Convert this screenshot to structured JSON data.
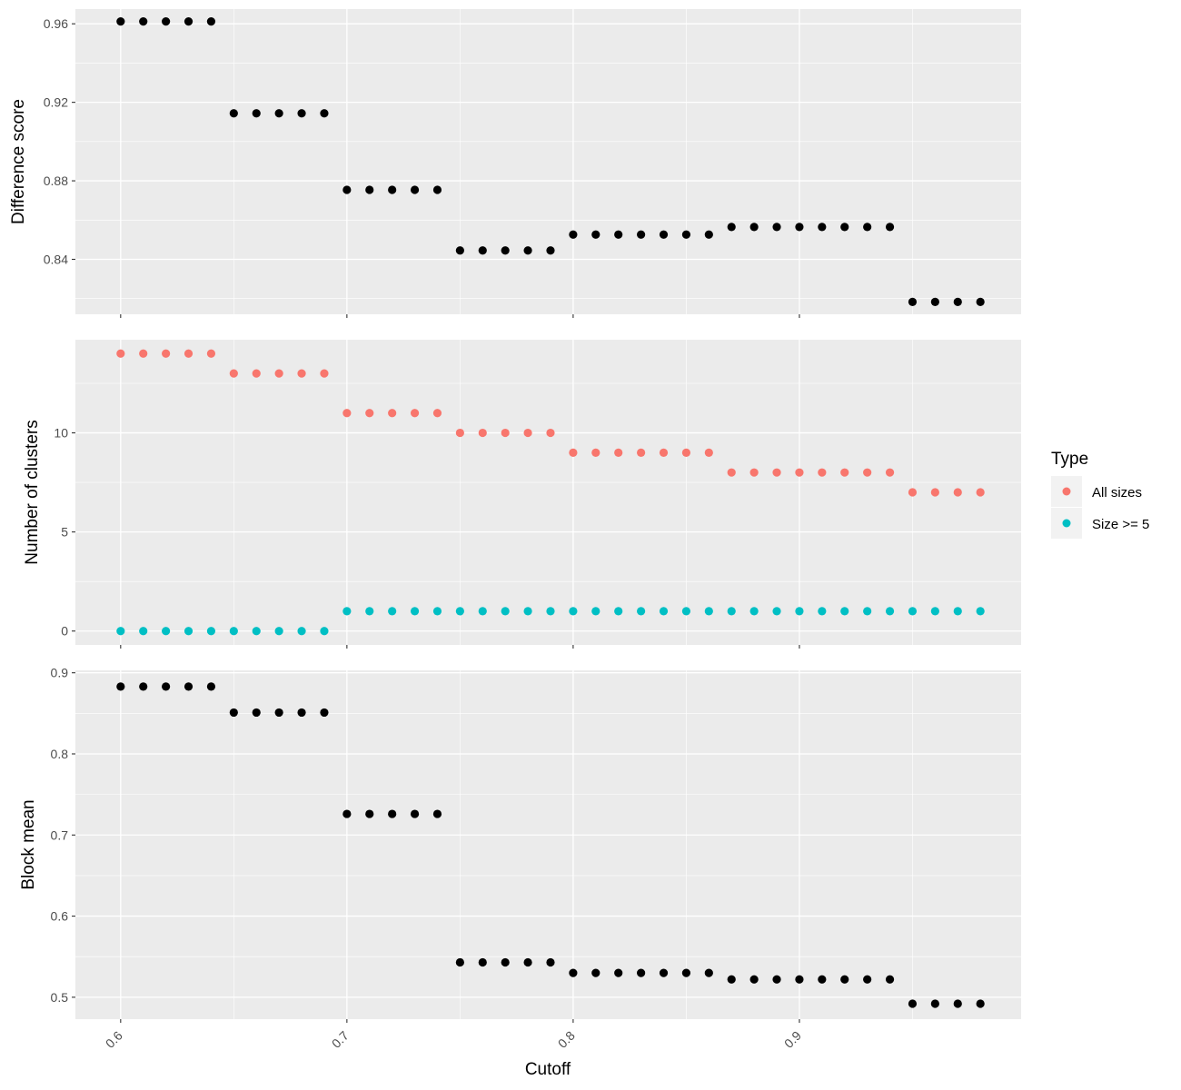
{
  "chart_data": {
    "type": "scatter",
    "layout": "vertical-facets",
    "x": [
      0.6,
      0.61,
      0.62,
      0.63,
      0.64,
      0.65,
      0.66,
      0.67,
      0.68,
      0.69,
      0.7,
      0.71,
      0.72,
      0.73,
      0.74,
      0.75,
      0.76,
      0.77,
      0.78,
      0.79,
      0.8,
      0.81,
      0.82,
      0.83,
      0.84,
      0.85,
      0.86,
      0.87,
      0.88,
      0.89,
      0.9,
      0.91,
      0.92,
      0.93,
      0.94,
      0.95,
      0.96,
      0.97,
      0.98
    ],
    "xlabel": "Cutoff",
    "xlim": [
      0.58,
      0.998
    ],
    "x_ticks": [
      0.6,
      0.7,
      0.8,
      0.9
    ],
    "x_tick_labels": [
      "0.6",
      "0.7",
      "0.8",
      "0.9"
    ],
    "grid": true,
    "panels": [
      {
        "ylabel": "Difference score",
        "ylim": [
          0.812,
          0.9675
        ],
        "y_ticks": [
          0.84,
          0.88,
          0.92,
          0.96
        ],
        "y_tick_labels": [
          "0.84",
          "0.88",
          "0.92",
          "0.96"
        ],
        "y_minor_ticks": [
          0.82,
          0.86,
          0.9,
          0.94
        ],
        "series": [
          {
            "color": "#000000",
            "values": [
              0.9612,
              0.9612,
              0.9612,
              0.9612,
              0.9612,
              0.9144,
              0.9144,
              0.9144,
              0.9144,
              0.9144,
              0.8754,
              0.8754,
              0.8754,
              0.8754,
              0.8754,
              0.8445,
              0.8445,
              0.8445,
              0.8445,
              0.8445,
              0.8526,
              0.8526,
              0.8526,
              0.8526,
              0.8526,
              0.8526,
              0.8526,
              0.8565,
              0.8565,
              0.8565,
              0.8565,
              0.8565,
              0.8565,
              0.8565,
              0.8565,
              0.8183,
              0.8183,
              0.8183,
              0.8183
            ]
          }
        ]
      },
      {
        "ylabel": "Number of clusters",
        "ylim": [
          -0.7,
          14.7
        ],
        "y_ticks": [
          0,
          5,
          10
        ],
        "y_tick_labels": [
          "0",
          "5",
          "10"
        ],
        "y_minor_ticks": [
          2.5,
          7.5,
          12.5
        ],
        "series": [
          {
            "name": "All sizes",
            "color": "#F8766D",
            "values": [
              14,
              14,
              14,
              14,
              14,
              13,
              13,
              13,
              13,
              13,
              11,
              11,
              11,
              11,
              11,
              10,
              10,
              10,
              10,
              10,
              9,
              9,
              9,
              9,
              9,
              9,
              9,
              8,
              8,
              8,
              8,
              8,
              8,
              8,
              8,
              7,
              7,
              7,
              7
            ]
          },
          {
            "name": "Size >= 5",
            "color": "#00BFC4",
            "values": [
              0,
              0,
              0,
              0,
              0,
              0,
              0,
              0,
              0,
              0,
              1,
              1,
              1,
              1,
              1,
              1,
              1,
              1,
              1,
              1,
              1,
              1,
              1,
              1,
              1,
              1,
              1,
              1,
              1,
              1,
              1,
              1,
              1,
              1,
              1,
              1,
              1,
              1,
              1
            ]
          }
        ]
      },
      {
        "ylabel": "Block mean",
        "ylim": [
          0.473,
          0.903
        ],
        "y_ticks": [
          0.5,
          0.6,
          0.7,
          0.8,
          0.9
        ],
        "y_tick_labels": [
          "0.5",
          "0.6",
          "0.7",
          "0.8",
          "0.9"
        ],
        "y_minor_ticks": [
          0.55,
          0.65,
          0.75,
          0.85
        ],
        "series": [
          {
            "color": "#000000",
            "values": [
              0.883,
              0.883,
              0.883,
              0.883,
              0.883,
              0.851,
              0.851,
              0.851,
              0.851,
              0.851,
              0.726,
              0.726,
              0.726,
              0.726,
              0.726,
              0.543,
              0.543,
              0.543,
              0.543,
              0.543,
              0.53,
              0.53,
              0.53,
              0.53,
              0.53,
              0.53,
              0.53,
              0.522,
              0.522,
              0.522,
              0.522,
              0.522,
              0.522,
              0.522,
              0.522,
              0.492,
              0.492,
              0.492,
              0.492
            ]
          }
        ]
      }
    ],
    "legend": {
      "title": "Type",
      "position": "right",
      "entries": [
        {
          "label": "All sizes",
          "color": "#F8766D"
        },
        {
          "label": "Size >= 5",
          "color": "#00BFC4"
        }
      ]
    }
  },
  "colors": {
    "panel_background": "#EBEBEB",
    "grid": "#FFFFFF",
    "tick_text": "#4D4D4D",
    "tick_mark": "#333333"
  }
}
